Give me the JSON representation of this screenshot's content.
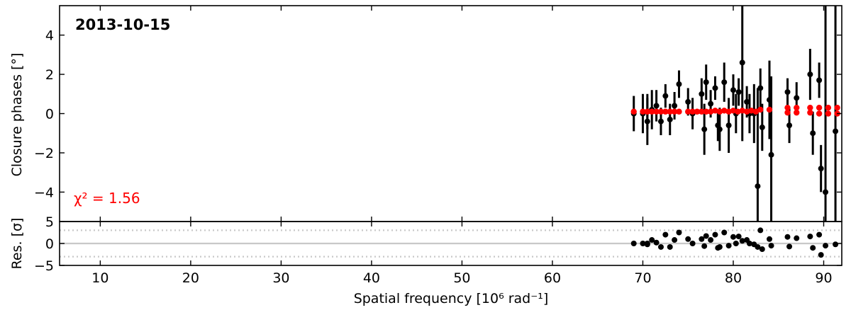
{
  "chart_data": {
    "type": "scatter",
    "date_label": "2013-10-15",
    "chi2_label": "χ² = 1.56",
    "xlabel": "Spatial frequency [10⁶ rad⁻¹]",
    "colors": {
      "data": "#000000",
      "model": "#ff0000",
      "ref_line": "#c8c8c8"
    },
    "xlim": [
      5.5,
      92
    ],
    "x_ticks": [
      10,
      20,
      30,
      40,
      50,
      60,
      70,
      80,
      90
    ],
    "x_tick_labels": [
      "10",
      "20",
      "30",
      "40",
      "50",
      "60",
      "70",
      "80",
      "90"
    ],
    "top_panel": {
      "ylabel": "Closure phases [°]",
      "ylim": [
        -5.5,
        5.5
      ],
      "y_ticks": [
        -4,
        -2,
        0,
        2,
        4
      ],
      "y_tick_labels": [
        "−4",
        "−2",
        "0",
        "2",
        "4"
      ],
      "observed": [
        {
          "x": 69.0,
          "y": 0.0,
          "err": 0.9
        },
        {
          "x": 70.0,
          "y": 0.0,
          "err": 1.0
        },
        {
          "x": 70.5,
          "y": 0.1,
          "err": 0.9
        },
        {
          "x": 70.5,
          "y": -0.4,
          "err": 1.2
        },
        {
          "x": 71.0,
          "y": 0.2,
          "err": 1.0
        },
        {
          "x": 71.5,
          "y": 0.4,
          "err": 0.8
        },
        {
          "x": 72.0,
          "y": -0.4,
          "err": 0.7
        },
        {
          "x": 72.5,
          "y": 0.9,
          "err": 0.6
        },
        {
          "x": 73.0,
          "y": -0.3,
          "err": 0.8
        },
        {
          "x": 73.5,
          "y": 0.4,
          "err": 0.7
        },
        {
          "x": 74.0,
          "y": 1.5,
          "err": 0.7
        },
        {
          "x": 75.0,
          "y": 0.6,
          "err": 0.7
        },
        {
          "x": 75.5,
          "y": 0.0,
          "err": 0.8
        },
        {
          "x": 76.5,
          "y": 1.0,
          "err": 0.8
        },
        {
          "x": 76.8,
          "y": -0.8,
          "err": 1.3
        },
        {
          "x": 77.0,
          "y": 1.6,
          "err": 0.9
        },
        {
          "x": 77.5,
          "y": 0.5,
          "err": 0.7
        },
        {
          "x": 78.0,
          "y": 1.3,
          "err": 0.6
        },
        {
          "x": 78.3,
          "y": -0.6,
          "err": 0.8
        },
        {
          "x": 78.5,
          "y": -0.8,
          "err": 1.1
        },
        {
          "x": 79.0,
          "y": 1.6,
          "err": 1.0
        },
        {
          "x": 79.5,
          "y": -0.6,
          "err": 1.4
        },
        {
          "x": 80.0,
          "y": 1.2,
          "err": 0.8
        },
        {
          "x": 80.3,
          "y": 0.0,
          "err": 1.0
        },
        {
          "x": 80.6,
          "y": 1.1,
          "err": 0.7
        },
        {
          "x": 81.0,
          "y": 2.6,
          "err": 4.0
        },
        {
          "x": 81.5,
          "y": 0.6,
          "err": 0.8
        },
        {
          "x": 81.8,
          "y": 0.0,
          "err": 1.0
        },
        {
          "x": 82.3,
          "y": 0.0,
          "err": 1.5
        },
        {
          "x": 82.7,
          "y": -3.7,
          "err": 5.0
        },
        {
          "x": 83.0,
          "y": 1.3,
          "err": 1.0
        },
        {
          "x": 83.2,
          "y": -0.7,
          "err": 1.2
        },
        {
          "x": 84.0,
          "y": 0.7,
          "err": 2.0
        },
        {
          "x": 84.2,
          "y": -2.1,
          "err": 4.0
        },
        {
          "x": 86.0,
          "y": 1.1,
          "err": 0.7
        },
        {
          "x": 86.2,
          "y": -0.6,
          "err": 0.9
        },
        {
          "x": 87.0,
          "y": 0.8,
          "err": 0.8
        },
        {
          "x": 88.5,
          "y": 2.0,
          "err": 1.3
        },
        {
          "x": 88.8,
          "y": -1.0,
          "err": 1.1
        },
        {
          "x": 89.5,
          "y": 1.7,
          "err": 0.9
        },
        {
          "x": 89.7,
          "y": -2.8,
          "err": 1.2
        },
        {
          "x": 90.2,
          "y": -4.0,
          "err": 10.0
        },
        {
          "x": 91.3,
          "y": -0.9,
          "err": 10.0
        }
      ],
      "model": {
        "x": [
          69.0,
          70.0,
          70.5,
          71.0,
          71.5,
          72.0,
          72.5,
          73.0,
          73.5,
          74.0,
          75.0,
          75.5,
          76.0,
          76.5,
          77.0,
          77.5,
          78.0,
          78.5,
          79.0,
          79.5,
          80.0,
          80.5,
          81.0,
          81.5,
          82.0,
          82.5,
          83.0,
          84.0,
          86.0,
          87.0,
          88.5,
          89.5,
          90.5,
          91.5,
          86.0,
          87.0,
          88.5,
          89.5,
          90.5,
          91.5
        ],
        "y": [
          0.1,
          0.1,
          0.1,
          0.1,
          0.1,
          0.1,
          0.1,
          0.1,
          0.1,
          0.1,
          0.1,
          0.1,
          0.1,
          0.1,
          0.1,
          0.1,
          0.15,
          0.1,
          0.15,
          0.1,
          0.15,
          0.1,
          0.15,
          0.1,
          0.15,
          0.1,
          0.2,
          0.2,
          0.3,
          0.3,
          0.3,
          0.3,
          0.3,
          0.3,
          0.05,
          0.05,
          0.05,
          0.0,
          0.0,
          0.0
        ]
      }
    },
    "bottom_panel": {
      "ylabel": "Res. [σ]",
      "ylim": [
        -5,
        5
      ],
      "y_ticks": [
        -5,
        0,
        5
      ],
      "y_tick_labels": [
        "−5",
        "0",
        "5"
      ],
      "ref_lines": [
        -3,
        0,
        3
      ],
      "residuals": [
        {
          "x": 69.0,
          "y": 0.0
        },
        {
          "x": 70.0,
          "y": 0.0
        },
        {
          "x": 70.5,
          "y": 0.0
        },
        {
          "x": 70.5,
          "y": -0.2
        },
        {
          "x": 71.0,
          "y": 0.8
        },
        {
          "x": 71.5,
          "y": 0.2
        },
        {
          "x": 72.0,
          "y": -0.8
        },
        {
          "x": 72.5,
          "y": 2.0
        },
        {
          "x": 73.0,
          "y": -0.8
        },
        {
          "x": 73.5,
          "y": 0.8
        },
        {
          "x": 74.0,
          "y": 2.5
        },
        {
          "x": 75.0,
          "y": 1.0
        },
        {
          "x": 75.5,
          "y": 0.0
        },
        {
          "x": 76.5,
          "y": 1.0
        },
        {
          "x": 76.8,
          "y": -0.6
        },
        {
          "x": 77.0,
          "y": 1.7
        },
        {
          "x": 77.5,
          "y": 0.8
        },
        {
          "x": 78.0,
          "y": 2.0
        },
        {
          "x": 78.3,
          "y": -1.0
        },
        {
          "x": 78.5,
          "y": -0.8
        },
        {
          "x": 79.0,
          "y": 2.5
        },
        {
          "x": 79.5,
          "y": -0.5
        },
        {
          "x": 80.0,
          "y": 1.5
        },
        {
          "x": 80.3,
          "y": 0.0
        },
        {
          "x": 80.6,
          "y": 1.6
        },
        {
          "x": 81.0,
          "y": 0.6
        },
        {
          "x": 81.5,
          "y": 0.8
        },
        {
          "x": 81.8,
          "y": 0.0
        },
        {
          "x": 82.3,
          "y": -0.2
        },
        {
          "x": 82.7,
          "y": -0.8
        },
        {
          "x": 83.0,
          "y": 3.0
        },
        {
          "x": 83.2,
          "y": -1.3
        },
        {
          "x": 84.0,
          "y": 1.0
        },
        {
          "x": 84.2,
          "y": -0.5
        },
        {
          "x": 86.0,
          "y": 1.5
        },
        {
          "x": 86.2,
          "y": -0.7
        },
        {
          "x": 87.0,
          "y": 1.2
        },
        {
          "x": 88.5,
          "y": 1.6
        },
        {
          "x": 88.8,
          "y": -1.0
        },
        {
          "x": 89.5,
          "y": 2.0
        },
        {
          "x": 89.7,
          "y": -2.6
        },
        {
          "x": 90.2,
          "y": -0.5
        },
        {
          "x": 91.3,
          "y": -0.2
        }
      ]
    }
  }
}
